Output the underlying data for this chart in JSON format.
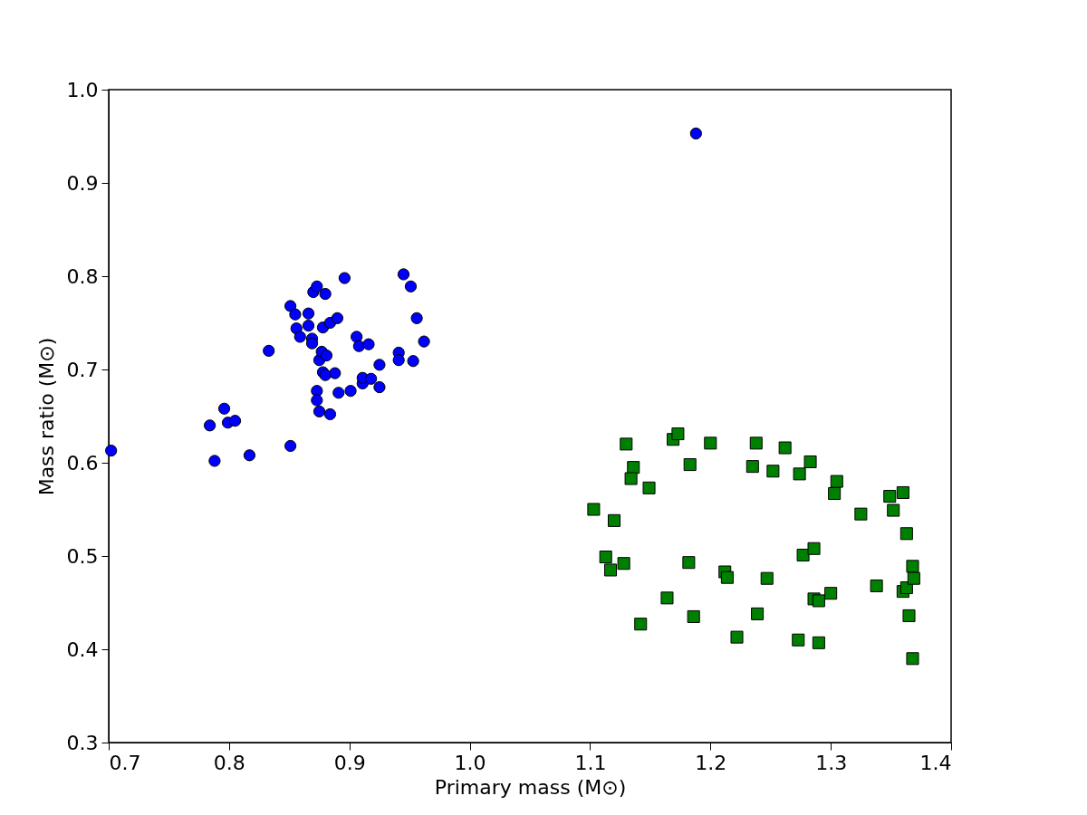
{
  "chart_data": {
    "type": "scatter",
    "xlabel": "Primary mass (M⊙)",
    "ylabel": "Mass ratio (M⊙)",
    "xlim": [
      0.7,
      1.4
    ],
    "xticks": [
      {
        "value": 0.7,
        "label": "0.7"
      },
      {
        "value": 0.8,
        "label": "0.8"
      },
      {
        "value": 0.9,
        "label": "0.9"
      },
      {
        "value": 1.0,
        "label": "1.0"
      },
      {
        "value": 1.1,
        "label": "1.1"
      },
      {
        "value": 1.2,
        "label": "1.2"
      },
      {
        "value": 1.3,
        "label": "1.3"
      },
      {
        "value": 1.4,
        "label": "1.4"
      }
    ],
    "ylim": [
      0.3,
      1.0
    ],
    "yticks": [
      {
        "value": 0.3,
        "label": "0.3"
      },
      {
        "value": 0.4,
        "label": "0.4"
      },
      {
        "value": 0.5,
        "label": "0.5"
      },
      {
        "value": 0.6,
        "label": "0.6"
      },
      {
        "value": 0.7,
        "label": "0.7"
      },
      {
        "value": 0.8,
        "label": "0.8"
      },
      {
        "value": 0.9,
        "label": "0.9"
      },
      {
        "value": 1.0,
        "label": "1.0"
      }
    ],
    "grid": false,
    "legend": false,
    "series": [
      {
        "color": "#0000ff",
        "marker": "circle",
        "x": [
          0.702,
          1.188,
          0.784,
          0.788,
          0.796,
          0.799,
          0.805,
          0.817,
          0.833,
          0.851,
          0.851,
          0.855,
          0.856,
          0.859,
          0.866,
          0.866,
          0.869,
          0.869,
          0.87,
          0.873,
          0.873,
          0.873,
          0.875,
          0.875,
          0.877,
          0.878,
          0.878,
          0.88,
          0.88,
          0.881,
          0.884,
          0.884,
          0.888,
          0.89,
          0.891,
          0.896,
          0.901,
          0.906,
          0.908,
          0.911,
          0.911,
          0.916,
          0.918,
          0.925,
          0.925,
          0.941,
          0.941,
          0.945,
          0.951,
          0.953,
          0.956,
          0.962
        ],
        "values": [
          0.613,
          0.953,
          0.64,
          0.602,
          0.658,
          0.643,
          0.645,
          0.608,
          0.72,
          0.618,
          0.768,
          0.759,
          0.744,
          0.735,
          0.76,
          0.747,
          0.733,
          0.728,
          0.783,
          0.789,
          0.677,
          0.667,
          0.71,
          0.655,
          0.719,
          0.745,
          0.697,
          0.781,
          0.694,
          0.715,
          0.75,
          0.652,
          0.696,
          0.755,
          0.675,
          0.798,
          0.677,
          0.735,
          0.725,
          0.685,
          0.691,
          0.727,
          0.69,
          0.705,
          0.681,
          0.718,
          0.71,
          0.802,
          0.789,
          0.709,
          0.755,
          0.73
        ]
      },
      {
        "color": "#008000",
        "marker": "square",
        "x": [
          1.103,
          1.12,
          1.113,
          1.117,
          1.128,
          1.13,
          1.136,
          1.134,
          1.142,
          1.149,
          1.164,
          1.169,
          1.173,
          1.183,
          1.182,
          1.186,
          1.2,
          1.212,
          1.214,
          1.222,
          1.235,
          1.238,
          1.239,
          1.247,
          1.252,
          1.262,
          1.273,
          1.274,
          1.277,
          1.283,
          1.286,
          1.286,
          1.29,
          1.29,
          1.3,
          1.303,
          1.305,
          1.325,
          1.338,
          1.349,
          1.352,
          1.36,
          1.363,
          1.36,
          1.363,
          1.365,
          1.368,
          1.369,
          1.368
        ],
        "values": [
          0.55,
          0.538,
          0.499,
          0.485,
          0.492,
          0.62,
          0.595,
          0.583,
          0.427,
          0.573,
          0.455,
          0.625,
          0.631,
          0.598,
          0.493,
          0.435,
          0.621,
          0.483,
          0.477,
          0.413,
          0.596,
          0.621,
          0.438,
          0.476,
          0.591,
          0.616,
          0.41,
          0.588,
          0.501,
          0.601,
          0.508,
          0.454,
          0.452,
          0.407,
          0.46,
          0.567,
          0.58,
          0.545,
          0.468,
          0.564,
          0.549,
          0.568,
          0.524,
          0.462,
          0.466,
          0.436,
          0.489,
          0.476,
          0.39
        ]
      }
    ]
  }
}
